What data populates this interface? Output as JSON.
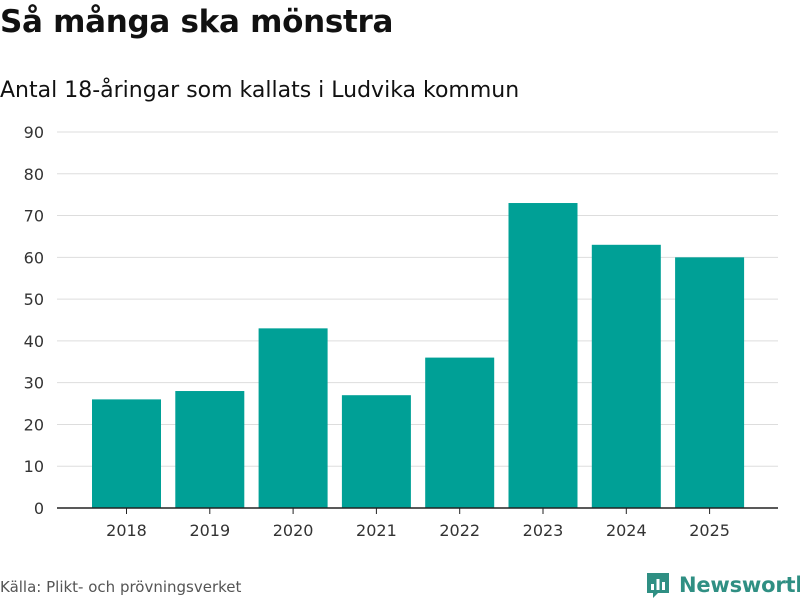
{
  "header": {
    "title": "Så många ska mönstra",
    "subtitle": "Antal 18-åringar som kallats i Ludvika kommun"
  },
  "footer": {
    "source": "Källa: Plikt- och prövningsverket",
    "brand": "Newsworthy"
  },
  "colors": {
    "bar": "#00a096",
    "grid": "#dddddd",
    "axis": "#222222",
    "brand": "#2f8f83"
  },
  "chart_data": {
    "type": "bar",
    "title": "Så många ska mönstra",
    "subtitle": "Antal 18-åringar som kallats i Ludvika kommun",
    "xlabel": "",
    "ylabel": "",
    "categories": [
      "2018",
      "2019",
      "2020",
      "2021",
      "2022",
      "2023",
      "2024",
      "2025"
    ],
    "values": [
      26,
      28,
      43,
      27,
      36,
      73,
      63,
      60
    ],
    "ylim": [
      0,
      90
    ],
    "yticks": [
      0,
      10,
      20,
      30,
      40,
      50,
      60,
      70,
      80,
      90
    ],
    "grid": true
  }
}
